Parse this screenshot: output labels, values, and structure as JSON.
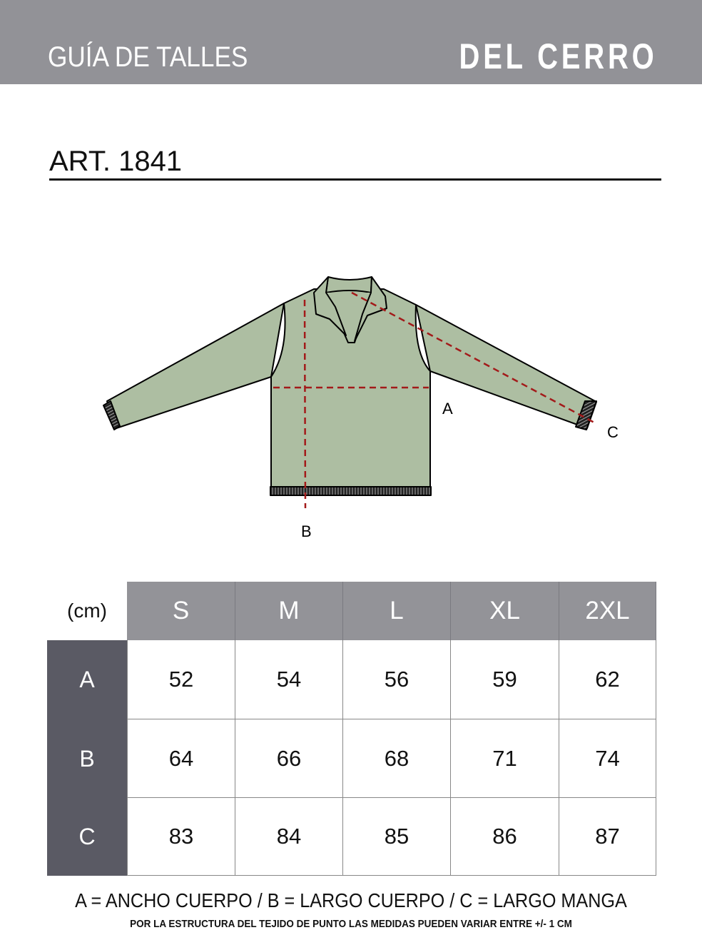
{
  "header": {
    "title": "GUÍA DE TALLES",
    "brand": "DEL CERRO"
  },
  "article": "ART. 1841",
  "diagram": {
    "labels": {
      "a": "A",
      "b": "B",
      "c": "C"
    },
    "garment_color": "#adbea2",
    "measure_line_color": "#a31a1a"
  },
  "table": {
    "unit": "(cm)",
    "sizes": [
      "S",
      "M",
      "L",
      "XL",
      "2XL"
    ],
    "rows": [
      {
        "label": "A",
        "values": [
          "52",
          "54",
          "56",
          "59",
          "62"
        ]
      },
      {
        "label": "B",
        "values": [
          "64",
          "66",
          "68",
          "71",
          "74"
        ]
      },
      {
        "label": "C",
        "values": [
          "83",
          "84",
          "85",
          "86",
          "87"
        ]
      }
    ],
    "header_color": "#939398",
    "row_label_color": "#5a5a64"
  },
  "legend": "A = ANCHO CUERPO / B = LARGO CUERPO / C = LARGO MANGA",
  "note": "POR LA ESTRUCTURA DEL TEJIDO DE PUNTO  LAS MEDIDAS PUEDEN VARIAR ENTRE  +/- 1 CM"
}
